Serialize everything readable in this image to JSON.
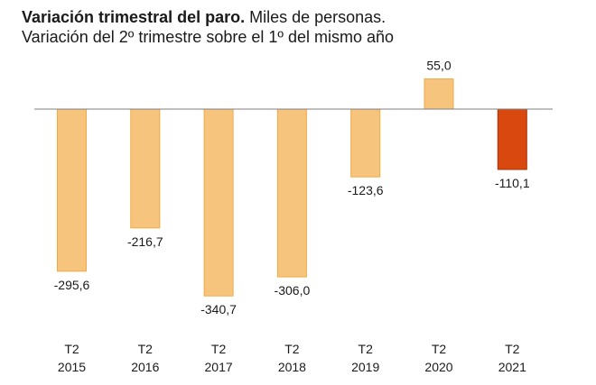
{
  "title_bold": "Variación trimestral del paro.",
  "title_rest": " Miles de personas.",
  "subtitle": "Variación del 2º trimestre sobre el 1º del mismo año",
  "chart_data": {
    "type": "bar",
    "title": "Variación trimestral del paro. Miles de personas.",
    "subtitle": "Variación del 2º trimestre sobre el 1º del mismo año",
    "categories": [
      [
        "T2",
        "2015"
      ],
      [
        "T2",
        "2016"
      ],
      [
        "T2",
        "2017"
      ],
      [
        "T2",
        "2018"
      ],
      [
        "T2",
        "2019"
      ],
      [
        "T2",
        "2020"
      ],
      [
        "T2",
        "2021"
      ]
    ],
    "values": [
      -295.6,
      -216.7,
      -340.7,
      -306.0,
      -123.6,
      55.0,
      -110.1
    ],
    "value_labels": [
      "-295,6",
      "-216,7",
      "-340,7",
      "-306,0",
      "-123,6",
      "55,0",
      "-110,1"
    ],
    "highlight_index": 6,
    "colors": {
      "bar": "#f7c47e",
      "bar_border": "#f2a941",
      "highlight": "#d9480f",
      "highlight_border": "#a8310a",
      "axis": "#7f7f7f"
    },
    "ylim": [
      -345,
      60
    ],
    "grid": false,
    "legend": "none"
  }
}
